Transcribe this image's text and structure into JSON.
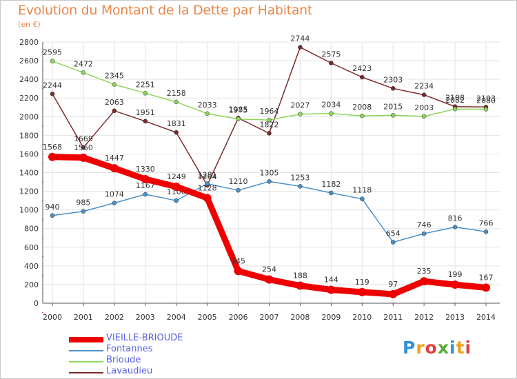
{
  "chart_title": "Evolution du Montant de la Dette par Habitant",
  "chart_subtitle": "(en €)",
  "logo_text": "Proxiti",
  "colors": {
    "title": "#e8884a",
    "legend_text": "#5560e6",
    "grid": "#e3e3e3",
    "axis": "#555555"
  },
  "chart_data": {
    "type": "line",
    "x": [
      "2000",
      "2001",
      "2002",
      "2003",
      "2004",
      "2005",
      "2006",
      "2007",
      "2008",
      "2009",
      "2010",
      "2011",
      "2012",
      "2013",
      "2014"
    ],
    "ylim": [
      0,
      2800
    ],
    "yticks": [
      0,
      200,
      400,
      600,
      800,
      1000,
      1200,
      1400,
      1600,
      1800,
      2000,
      2200,
      2400,
      2600,
      2800
    ],
    "grid": true,
    "legend_position": "bottom-left",
    "series": [
      {
        "name": "Lavaudieu",
        "color": "#7a2a2a",
        "values": [
          2244,
          1669,
          2063,
          1951,
          1831,
          1264,
          1985,
          1822,
          2744,
          2575,
          2423,
          2303,
          2234,
          2108,
          2103
        ]
      },
      {
        "name": "Brioude",
        "color": "#8ed65a",
        "values": [
          2595,
          2472,
          2345,
          2251,
          2158,
          2033,
          1975,
          1964,
          2027,
          2034,
          2008,
          2015,
          2003,
          2082,
          2080
        ]
      },
      {
        "name": "Fontannes",
        "color": "#4a90c8",
        "values": [
          940,
          985,
          1074,
          1167,
          1100,
          1281,
          1210,
          1305,
          1253,
          1182,
          1118,
          654,
          746,
          816,
          766
        ]
      },
      {
        "name": "VIEILLE-BRIOUDE",
        "color": "#ee0000",
        "values": [
          1568,
          1560,
          1447,
          1330,
          1249,
          1128,
          345,
          254,
          188,
          144,
          119,
          97,
          235,
          199,
          167
        ]
      }
    ],
    "legend": [
      "VIEILLE-BRIOUDE",
      "Fontannes",
      "Brioude",
      "Lavaudieu"
    ]
  }
}
